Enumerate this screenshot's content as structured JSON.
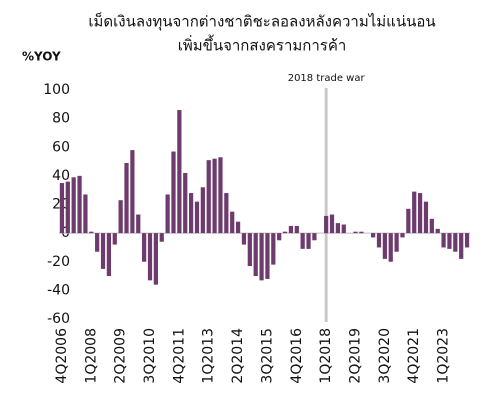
{
  "chart_data": {
    "type": "bar",
    "title": "เม็ดเงินลงทุนจากต่างชาติชะลอลงหลังความไม่แน่นอน",
    "subtitle": "เพิ่มขึ้นจากสงครามการค้า",
    "y_label": "%YOY",
    "annotation": {
      "text": "2018 trade war",
      "x": "1Q2018"
    },
    "categories": [
      "4Q2006",
      null,
      null,
      null,
      null,
      "1Q2008",
      null,
      null,
      null,
      null,
      "2Q2009",
      null,
      null,
      null,
      null,
      "3Q2010",
      null,
      null,
      null,
      null,
      "4Q2011",
      null,
      null,
      null,
      null,
      "1Q2013",
      null,
      null,
      null,
      null,
      "2Q2014",
      null,
      null,
      null,
      null,
      "3Q2015",
      null,
      null,
      null,
      null,
      "4Q2016",
      null,
      null,
      null,
      null,
      "1Q2018",
      null,
      null,
      null,
      null,
      "2Q2019",
      null,
      null,
      null,
      null,
      "3Q2020",
      null,
      null,
      null,
      null,
      "4Q2021",
      null,
      null,
      null,
      null,
      "1Q2023",
      null,
      null,
      null,
      null
    ],
    "values": [
      35,
      36,
      39,
      40,
      27,
      1,
      -13,
      -25,
      -30,
      -8,
      23,
      49,
      58,
      13,
      -20,
      -33,
      -36,
      -6,
      27,
      57,
      86,
      42,
      28,
      22,
      32,
      51,
      52,
      53,
      28,
      15,
      8,
      -8,
      -23,
      -30,
      -33,
      -32,
      -22,
      -5,
      1,
      5,
      5,
      -11,
      -11,
      -5,
      0,
      12,
      13,
      7,
      6,
      0,
      1,
      1,
      0,
      -3,
      -10,
      -18,
      -20,
      -13,
      -3,
      17,
      29,
      28,
      22,
      10,
      3,
      -10,
      -11,
      -13,
      -18,
      -10
    ],
    "color": "#6e3b6e",
    "ylim": [
      -60,
      100
    ],
    "yticks": [
      -60,
      -40,
      -20,
      0,
      20,
      40,
      60,
      80,
      100
    ],
    "grid": false
  }
}
